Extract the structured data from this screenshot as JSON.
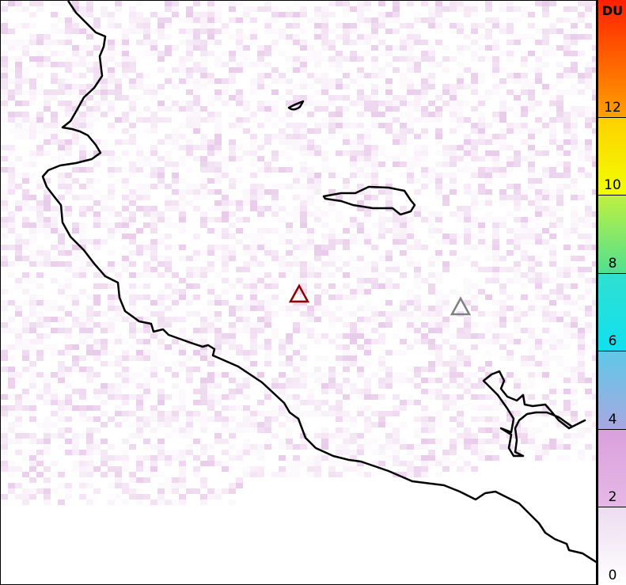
{
  "colorbar": {
    "unit": "DU",
    "ticks": [
      "0",
      "2",
      "4",
      "6",
      "8",
      "10",
      "12"
    ],
    "range": [
      0,
      15
    ],
    "colors": [
      "#ffffff",
      "#ecdcf0",
      "#d9a6dc",
      "#b0a8e0",
      "#6cb8e0",
      "#10e0ef",
      "#5ee888",
      "#9ef060",
      "#ffff00",
      "#ffc000",
      "#ff7000",
      "#ff2000"
    ]
  },
  "markers": [
    {
      "name": "volcano-marker-red",
      "color": "#8b0000"
    },
    {
      "name": "volcano-marker-gray",
      "color": "#808080"
    }
  ],
  "coastline_color": "#000000",
  "field_color": "#d9a6dc"
}
